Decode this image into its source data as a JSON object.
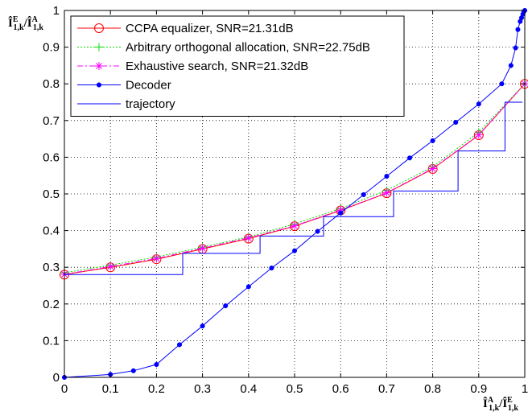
{
  "chart_data": {
    "type": "line",
    "xlabel": {
      "main": "Î",
      "sup_a": "A",
      "sub_a": "1,k",
      "sep": "/",
      "main2": "Î",
      "sup_b": "E",
      "sub_b": "1,k"
    },
    "ylabel": {
      "main": "Î",
      "sup_a": "E",
      "sub_a": "1,k",
      "sep": "/",
      "main2": "Î",
      "sup_b": "A",
      "sub_b": "1,k"
    },
    "xlim": [
      0,
      1
    ],
    "ylim": [
      0,
      1
    ],
    "grid": true,
    "legend_position": "top-left",
    "xticks": [
      "0",
      "0.1",
      "0.2",
      "0.3",
      "0.4",
      "0.5",
      "0.6",
      "0.7",
      "0.8",
      "0.9",
      "1"
    ],
    "yticks": [
      "0",
      "0.1",
      "0.2",
      "0.3",
      "0.4",
      "0.5",
      "0.6",
      "0.7",
      "0.8",
      "0.9",
      "1"
    ],
    "series": [
      {
        "name": "CCPA equalizer, SNR=21.31dB",
        "color": "#ff0000",
        "dash": "solid",
        "marker": "circle-open",
        "x": [
          0,
          0.1,
          0.2,
          0.3,
          0.4,
          0.5,
          0.6,
          0.7,
          0.8,
          0.9,
          1.0
        ],
        "y": [
          0.28,
          0.3,
          0.322,
          0.35,
          0.378,
          0.412,
          0.455,
          0.502,
          0.568,
          0.66,
          0.8
        ]
      },
      {
        "name": "Arbitrary orthogonal allocation, SNR=22.75dB",
        "color": "#00dd00",
        "dash": "dotted",
        "marker": "plus",
        "x": [
          0,
          0.1,
          0.2,
          0.3,
          0.4,
          0.5,
          0.6,
          0.7,
          0.8,
          0.9,
          1.0
        ],
        "y": [
          0.285,
          0.306,
          0.328,
          0.355,
          0.383,
          0.418,
          0.46,
          0.51,
          0.574,
          0.668,
          0.8
        ]
      },
      {
        "name": "Exhaustive search, SNR=21.32dB",
        "color": "#ff00ff",
        "dash": "dashdot",
        "marker": "star",
        "x": [
          0,
          0.1,
          0.2,
          0.3,
          0.4,
          0.5,
          0.6,
          0.7,
          0.8,
          0.9,
          1.0
        ],
        "y": [
          0.281,
          0.302,
          0.324,
          0.352,
          0.38,
          0.413,
          0.456,
          0.503,
          0.569,
          0.661,
          0.8
        ]
      },
      {
        "name": "Decoder",
        "color": "#0000ff",
        "dash": "solid",
        "marker": "dot",
        "x": [
          0,
          0.1,
          0.15,
          0.2,
          0.25,
          0.3,
          0.35,
          0.4,
          0.45,
          0.5,
          0.55,
          0.6,
          0.65,
          0.7,
          0.75,
          0.8,
          0.85,
          0.9,
          0.95,
          0.97,
          0.98,
          0.985,
          0.99,
          0.993,
          0.996,
          0.998,
          1.0
        ],
        "y": [
          0,
          0.008,
          0.018,
          0.035,
          0.089,
          0.14,
          0.195,
          0.247,
          0.298,
          0.345,
          0.398,
          0.448,
          0.498,
          0.548,
          0.598,
          0.645,
          0.695,
          0.745,
          0.8,
          0.85,
          0.898,
          0.948,
          0.97,
          0.98,
          0.99,
          0.997,
          1.0
        ]
      },
      {
        "name": "trajectory",
        "color": "#0000ff",
        "dash": "solid",
        "marker": "none",
        "x": [
          0,
          0,
          0.257,
          0.257,
          0.425,
          0.425,
          0.563,
          0.563,
          0.715,
          0.715,
          0.855,
          0.855,
          0.957,
          0.957,
          0.995
        ],
        "y": [
          0,
          0.28,
          0.28,
          0.338,
          0.338,
          0.385,
          0.385,
          0.438,
          0.438,
          0.508,
          0.508,
          0.617,
          0.617,
          0.75,
          0.75
        ]
      }
    ]
  }
}
